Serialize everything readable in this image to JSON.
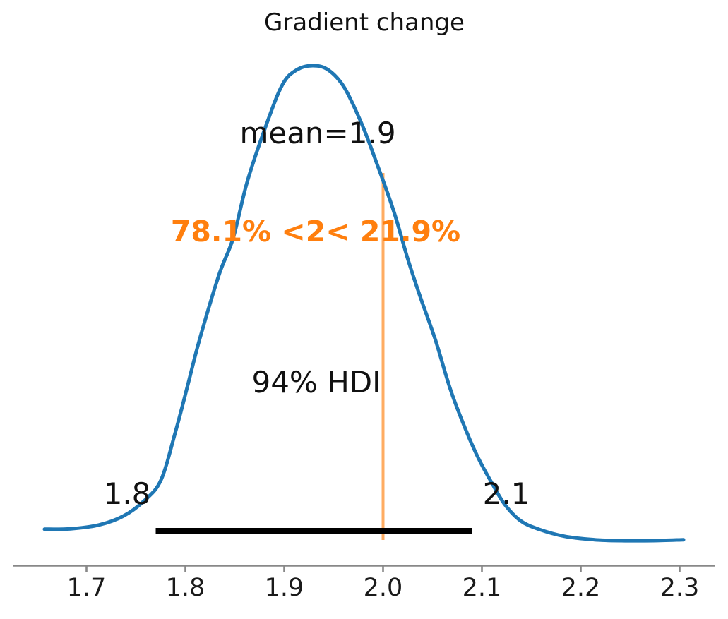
{
  "title": "Gradient change",
  "annotations": {
    "mean_label": "mean=1.9",
    "ref_val_label": "78.1% <2< 21.9%",
    "hdi_label": "94% HDI",
    "hdi_lower_label": "1.8",
    "hdi_upper_label": "2.1"
  },
  "chart_data": {
    "type": "line",
    "subtype": "kde-posterior-density",
    "title": "Gradient change",
    "xlabel": "",
    "ylabel": "",
    "mean": 1.9,
    "hdi_prob": 0.94,
    "hdi_label": "94% HDI",
    "hdi_interval": [
      1.77,
      2.09
    ],
    "hdi_interval_labels": [
      "1.8",
      "2.1"
    ],
    "reference_value": 2,
    "pct_below_ref": 78.1,
    "pct_above_ref": 21.9,
    "reference_text": "78.1% <2< 21.9%",
    "xlim": [
      1.626,
      2.336
    ],
    "x_ticks": [
      1.7,
      1.8,
      1.9,
      2.0,
      2.1,
      2.2,
      2.3
    ],
    "x_tick_labels": [
      "1.7",
      "1.8",
      "1.9",
      "2.0",
      "2.1",
      "2.2",
      "2.3"
    ],
    "grid": false,
    "legend": false,
    "curve_points": [
      [
        1.6575,
        0.024
      ],
      [
        1.6839,
        0.025
      ],
      [
        1.7125,
        0.033
      ],
      [
        1.7375,
        0.052
      ],
      [
        1.7589,
        0.085
      ],
      [
        1.7754,
        0.128
      ],
      [
        1.7896,
        0.226
      ],
      [
        1.8025,
        0.328
      ],
      [
        1.8146,
        0.425
      ],
      [
        1.8339,
        0.559
      ],
      [
        1.8482,
        0.636
      ],
      [
        1.8625,
        0.755
      ],
      [
        1.8818,
        0.875
      ],
      [
        1.8982,
        0.96
      ],
      [
        1.9125,
        0.991
      ],
      [
        1.9289,
        1.0
      ],
      [
        1.9446,
        0.991
      ],
      [
        1.9611,
        0.953
      ],
      [
        1.9789,
        0.875
      ],
      [
        1.9946,
        0.789
      ],
      [
        2.0111,
        0.692
      ],
      [
        2.0246,
        0.596
      ],
      [
        2.0375,
        0.514
      ],
      [
        2.0532,
        0.421
      ],
      [
        2.0682,
        0.318
      ],
      [
        2.0839,
        0.232
      ],
      [
        2.0968,
        0.172
      ],
      [
        2.1104,
        0.12
      ],
      [
        2.1232,
        0.076
      ],
      [
        2.1389,
        0.042
      ],
      [
        2.1575,
        0.024
      ],
      [
        2.1839,
        0.009
      ],
      [
        2.2139,
        0.002
      ],
      [
        2.2411,
        0.0
      ],
      [
        2.2732,
        0.0
      ],
      [
        2.3039,
        0.002
      ]
    ],
    "colors": {
      "curve": "#1f77b4",
      "reference_line": "#ff7f0e",
      "reference_text": "#ff7f0e",
      "hdi_bar": "#000000",
      "axis": "#888888",
      "text": "#111111"
    }
  }
}
